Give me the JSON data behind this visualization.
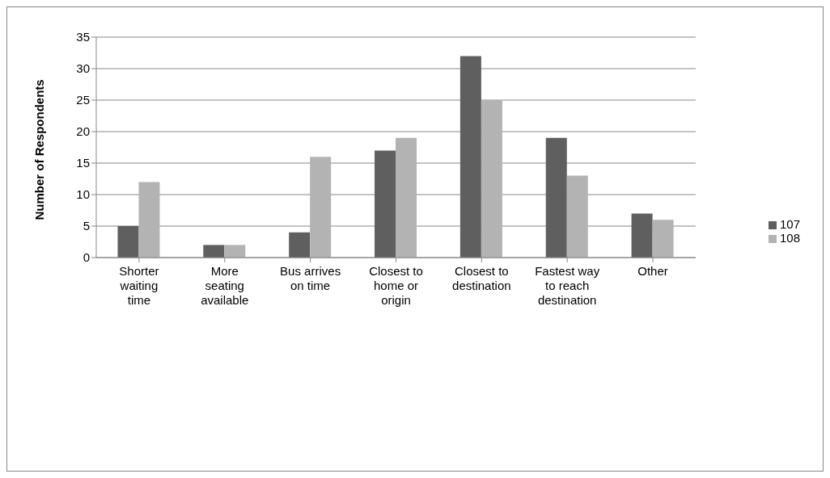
{
  "chart_data": {
    "type": "bar",
    "ylabel": "Number of Respondents",
    "categories": [
      "Shorter waiting time",
      "More seating available",
      "Bus arrives on time",
      "Closest to home or origin",
      "Closest to destination",
      "Fastest way to reach destination",
      "Other"
    ],
    "series": [
      {
        "name": "107",
        "color": "#5f5f5f",
        "values": [
          5,
          2,
          4,
          17,
          32,
          19,
          7
        ]
      },
      {
        "name": "108",
        "color": "#b3b3b3",
        "values": [
          12,
          2,
          16,
          19,
          25,
          13,
          6
        ]
      }
    ],
    "ylim": [
      0,
      35
    ],
    "yticks": [
      0,
      5,
      10,
      15,
      20,
      25,
      30,
      35
    ],
    "grid": "y",
    "legend": "right"
  }
}
